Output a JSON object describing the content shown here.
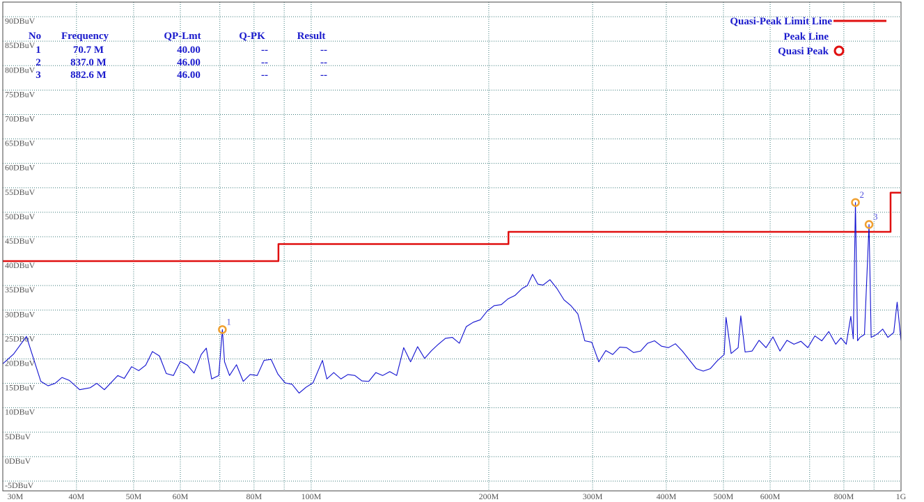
{
  "chart_data": {
    "type": "line",
    "xscale": "log",
    "xlim": [
      30,
      1000
    ],
    "ylim": [
      -7,
      93
    ],
    "xticks": [
      {
        "value": 30,
        "label": "30M"
      },
      {
        "value": 40,
        "label": "40M"
      },
      {
        "value": 50,
        "label": "50M"
      },
      {
        "value": 60,
        "label": "60M"
      },
      {
        "value": 80,
        "label": "80M"
      },
      {
        "value": 100,
        "label": "100M"
      },
      {
        "value": 200,
        "label": "200M"
      },
      {
        "value": 300,
        "label": "300M"
      },
      {
        "value": 400,
        "label": "400M"
      },
      {
        "value": 500,
        "label": "500M"
      },
      {
        "value": 600,
        "label": "600M"
      },
      {
        "value": 800,
        "label": "800M"
      },
      {
        "value": 1000,
        "label": "1G"
      }
    ],
    "xminorticks": [
      70,
      90,
      700,
      900
    ],
    "yticks": [
      {
        "value": -5,
        "label": "-5DBuV"
      },
      {
        "value": 0,
        "label": "0DBuV"
      },
      {
        "value": 5,
        "label": "5DBuV"
      },
      {
        "value": 10,
        "label": "10DBuV"
      },
      {
        "value": 15,
        "label": "15DBuV"
      },
      {
        "value": 20,
        "label": "20DBuV"
      },
      {
        "value": 25,
        "label": "25DBuV"
      },
      {
        "value": 30,
        "label": "30DBuV"
      },
      {
        "value": 35,
        "label": "35DBuV"
      },
      {
        "value": 40,
        "label": "40DBuV"
      },
      {
        "value": 45,
        "label": "45DBuV"
      },
      {
        "value": 50,
        "label": "50DBuV"
      },
      {
        "value": 55,
        "label": "55DBuV"
      },
      {
        "value": 60,
        "label": "60DBuV"
      },
      {
        "value": 65,
        "label": "65DBuV"
      },
      {
        "value": 70,
        "label": "70DBuV"
      },
      {
        "value": 75,
        "label": "75DBuV"
      },
      {
        "value": 80,
        "label": "80DBuV"
      },
      {
        "value": 85,
        "label": "85DBuV"
      },
      {
        "value": 90,
        "label": "90DBuV"
      }
    ],
    "grid": true,
    "legend_position": "upper right",
    "series": [
      {
        "name": "Quasi-Peak Limit Line",
        "color": "#e01010",
        "x": [
          30,
          88,
          88,
          216,
          216,
          960,
          960,
          1000
        ],
        "values": [
          40,
          40,
          43.5,
          43.5,
          46,
          46,
          54,
          54
        ]
      },
      {
        "name": "Peak Line",
        "color": "#1010d0",
        "x": [
          30,
          31.3,
          32.9,
          34.8,
          35.8,
          36.8,
          37.8,
          38.9,
          40.5,
          42.2,
          43.3,
          44.6,
          47,
          48.2,
          49.6,
          51,
          52.4,
          53.8,
          55.3,
          56.8,
          58.4,
          60,
          61.7,
          63.3,
          65.1,
          66.4,
          67.8,
          69.7,
          70.7,
          71.3,
          72.7,
          74.7,
          76.7,
          78.8,
          81,
          83.2,
          85.5,
          87.8,
          90.3,
          92.8,
          95.4,
          98,
          100.7,
          104.5,
          106.3,
          109.2,
          112.3,
          115.4,
          118.6,
          121.9,
          125.2,
          128.7,
          132.2,
          135.9,
          139.6,
          143.5,
          147.4,
          151.5,
          155.7,
          160,
          164.3,
          168.9,
          173.5,
          178.3,
          183.2,
          188.3,
          193.5,
          198.8,
          204.3,
          210,
          215.7,
          221.7,
          227.8,
          232.5,
          237.3,
          242.2,
          247.2,
          254,
          261,
          268.2,
          275.6,
          283.2,
          291,
          299,
          307.3,
          315.8,
          324.5,
          333.5,
          342.6,
          352,
          361.8,
          371.8,
          382,
          392.5,
          403.4,
          414.5,
          425.9,
          437.6,
          449.7,
          462.1,
          474.9,
          488,
          501.4,
          505,
          515.2,
          529.5,
          535,
          544.1,
          559.1,
          574.5,
          590.4,
          606.6,
          623.4,
          640.6,
          658.3,
          676.5,
          695.1,
          714.3,
          734,
          754.2,
          775,
          791,
          807.5,
          822,
          830,
          837,
          844,
          852,
          867,
          882.6,
          890,
          912,
          931,
          950,
          972,
          985,
          1000
        ],
        "values": [
          19,
          21,
          24.6,
          15.4,
          14.5,
          15,
          16.2,
          15.6,
          13.7,
          14.1,
          15,
          13.7,
          16.6,
          16,
          18.4,
          17.6,
          18.7,
          21.5,
          20.6,
          17,
          16.6,
          19.5,
          18.7,
          17.1,
          20.9,
          22.2,
          15.9,
          16.6,
          26,
          19.4,
          16.6,
          18.8,
          15.4,
          16.8,
          16.6,
          19.7,
          19.9,
          16.9,
          15.1,
          14.8,
          13,
          14.2,
          15.1,
          19.7,
          15.9,
          17.2,
          15.9,
          16.8,
          16.6,
          15.5,
          15.4,
          17.2,
          16.6,
          17.4,
          16.6,
          22.3,
          19.4,
          22.5,
          20.1,
          21.7,
          23,
          24.2,
          24.4,
          23.2,
          26.6,
          27.5,
          28,
          29.8,
          30.9,
          31.1,
          32.3,
          33,
          34.4,
          35,
          37.3,
          35.3,
          35.1,
          36.2,
          34.4,
          32.1,
          30.9,
          29.2,
          23.7,
          23.4,
          19.4,
          21.7,
          20.9,
          22.4,
          22.3,
          21.3,
          21.6,
          23.2,
          23.7,
          22.6,
          22.3,
          23.1,
          21.6,
          19.8,
          18,
          17.5,
          18,
          19.6,
          20.9,
          28.5,
          21.1,
          22.3,
          28.8,
          21.4,
          21.6,
          23.8,
          22.3,
          24.5,
          21.6,
          23.8,
          23,
          23.6,
          22.3,
          24.7,
          23.7,
          25.6,
          23,
          24.3,
          23,
          28.7,
          24.1,
          52,
          23.7,
          24.4,
          25,
          47.5,
          24.4,
          25.1,
          26.1,
          24.4,
          25.4,
          31.6,
          23.7
        ]
      }
    ],
    "quasi_peak": {
      "name": "Quasi Peak",
      "color": "#e01010"
    },
    "markers": {
      "color": "#f0a030",
      "labels": [
        "1",
        "2",
        "3"
      ],
      "x": [
        70.7,
        837,
        882.6
      ],
      "values": [
        26,
        52,
        47.5
      ]
    },
    "table": {
      "columns": [
        "No",
        "Frequency",
        "QP-Lmt",
        "Q-PK",
        "Result"
      ],
      "rows": [
        [
          "1",
          "70.7 M",
          "40.00",
          "--",
          "--"
        ],
        [
          "2",
          "837.0 M",
          "46.00",
          "--",
          "--"
        ],
        [
          "3",
          "882.6 M",
          "46.00",
          "--",
          "--"
        ]
      ]
    }
  }
}
